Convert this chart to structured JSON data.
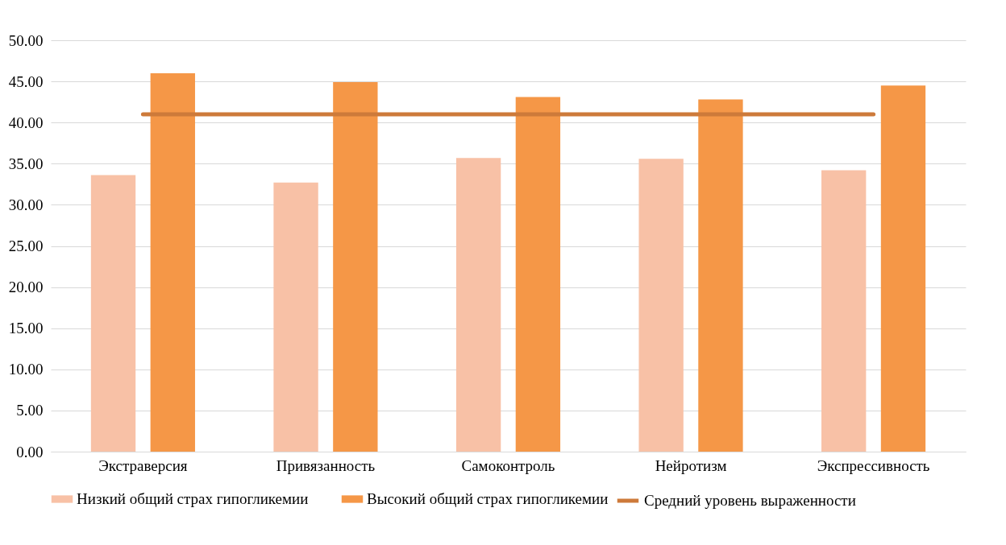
{
  "chart_data": {
    "type": "bar",
    "categories": [
      "Экстраверсия",
      "Привязанность",
      "Самоконтроль",
      "Нейротизм",
      "Экспрессивность"
    ],
    "series": [
      {
        "name": "Низкий общий страх гипогликемии",
        "color": "#f8c1a6",
        "values": [
          33.6,
          32.7,
          35.7,
          35.6,
          34.2
        ]
      },
      {
        "name": "Высокий общий страх гипогликемии",
        "color": "#f59747",
        "values": [
          46.0,
          44.9,
          43.1,
          42.8,
          44.5
        ]
      },
      {
        "name": "Средний уровень выраженности",
        "type": "line",
        "color": "#cd7a3a",
        "values": [
          41.0,
          41.0,
          41.0,
          41.0,
          41.0
        ]
      }
    ],
    "ylim": [
      0,
      50
    ],
    "yticks": [
      {
        "value": 0,
        "label": "0.00"
      },
      {
        "value": 5,
        "label": "5.00"
      },
      {
        "value": 10,
        "label": "10.00"
      },
      {
        "value": 15,
        "label": "15.00"
      },
      {
        "value": 20,
        "label": "20.00"
      },
      {
        "value": 25,
        "label": "25.00"
      },
      {
        "value": 30,
        "label": "30.00"
      },
      {
        "value": 35,
        "label": "35.00"
      },
      {
        "value": 40,
        "label": "40.00"
      },
      {
        "value": 45,
        "label": "45.00"
      },
      {
        "value": 50,
        "label": "50.00"
      }
    ],
    "grid": "y",
    "legend": "bottom",
    "line_style": "solid",
    "marker": "none"
  }
}
